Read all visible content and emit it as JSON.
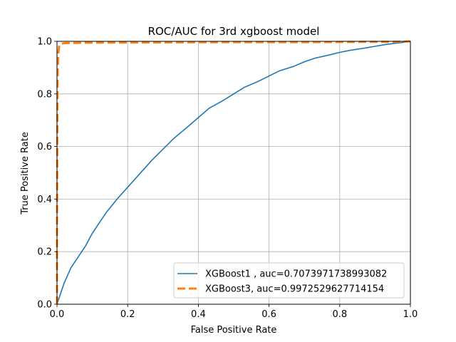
{
  "chart_data": {
    "type": "line",
    "title": "ROC/AUC for 3rd xgboost model",
    "xlabel": "False Positive Rate",
    "ylabel": "True Positive Rate",
    "xlim": [
      0,
      1
    ],
    "ylim": [
      0,
      1
    ],
    "xticks": [
      "0.0",
      "0.2",
      "0.4",
      "0.6",
      "0.8",
      "1.0"
    ],
    "yticks": [
      "0.0",
      "0.2",
      "0.4",
      "0.6",
      "0.8",
      "1.0"
    ],
    "grid": true,
    "legend_position": "lower-right",
    "series": [
      {
        "name": "XGBoost1 , auc=0.7073971738993082",
        "color": "#1f77b4",
        "line_style": "solid",
        "x": [
          0.0,
          0.01,
          0.02,
          0.03,
          0.04,
          0.06,
          0.08,
          0.1,
          0.12,
          0.14,
          0.17,
          0.2,
          0.23,
          0.27,
          0.3,
          0.33,
          0.37,
          0.4,
          0.43,
          0.47,
          0.5,
          0.53,
          0.57,
          0.6,
          0.63,
          0.67,
          0.7,
          0.73,
          0.77,
          0.8,
          0.83,
          0.87,
          0.9,
          0.93,
          0.96,
          0.98,
          1.0
        ],
        "y": [
          0.0,
          0.04,
          0.08,
          0.11,
          0.14,
          0.18,
          0.22,
          0.27,
          0.31,
          0.35,
          0.4,
          0.445,
          0.49,
          0.55,
          0.59,
          0.63,
          0.675,
          0.71,
          0.745,
          0.775,
          0.8,
          0.825,
          0.848,
          0.868,
          0.888,
          0.905,
          0.922,
          0.936,
          0.948,
          0.958,
          0.966,
          0.974,
          0.981,
          0.988,
          0.993,
          0.996,
          1.0
        ]
      },
      {
        "name": "XGBoost3, auc=0.9972529627714154",
        "color": "#ff7f0e",
        "line_style": "dashed",
        "x": [
          0.0,
          0.0,
          0.001,
          0.002,
          0.004,
          0.006,
          0.01,
          0.02,
          0.05,
          0.1,
          0.3,
          0.5,
          0.7,
          0.9,
          0.95,
          0.98,
          1.0
        ],
        "y": [
          0.0,
          0.3,
          0.7,
          0.9,
          0.96,
          0.98,
          0.99,
          0.993,
          0.994,
          0.995,
          0.996,
          0.997,
          0.997,
          0.998,
          0.998,
          0.999,
          1.0
        ]
      }
    ]
  }
}
